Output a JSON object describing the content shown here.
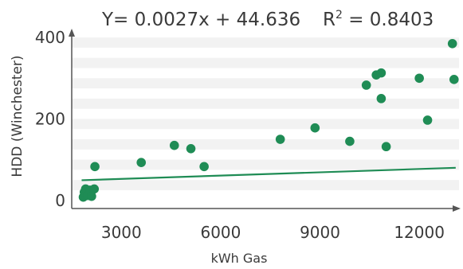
{
  "chart_data": {
    "type": "scatter",
    "title": "",
    "equation": "Y= 0.0027x + 44.636",
    "r2_prefix": "R",
    "r2_exp": "2",
    "r2_value": " = 0.8403",
    "xlabel": "kWh Gas",
    "ylabel": "HDD (Winchester)",
    "xlim": [
      1500,
      13200
    ],
    "ylim": [
      -20,
      410
    ],
    "xticks": [
      3000,
      6000,
      9000,
      12000
    ],
    "xtick_labels": [
      "3000",
      "6000",
      "9000",
      "12000"
    ],
    "yticks": [
      0,
      200,
      400
    ],
    "ytick_labels": [
      "0",
      "200",
      "400"
    ],
    "grid": "horizontal bands",
    "legend": "none",
    "point_color": "#1f8c55",
    "band_color": "#f2f2f2",
    "axis_color": "#555555",
    "trendline": {
      "slope": 0.0027,
      "intercept": 44.636,
      "x_range": [
        1800,
        13100
      ]
    },
    "points": [
      {
        "x": 1850,
        "y": 8
      },
      {
        "x": 1880,
        "y": 20
      },
      {
        "x": 1920,
        "y": 28
      },
      {
        "x": 1980,
        "y": 12
      },
      {
        "x": 2050,
        "y": 25
      },
      {
        "x": 2100,
        "y": 10
      },
      {
        "x": 2180,
        "y": 28
      },
      {
        "x": 2200,
        "y": 83
      },
      {
        "x": 3600,
        "y": 93
      },
      {
        "x": 4600,
        "y": 135
      },
      {
        "x": 5100,
        "y": 127
      },
      {
        "x": 5500,
        "y": 83
      },
      {
        "x": 7800,
        "y": 150
      },
      {
        "x": 8850,
        "y": 178
      },
      {
        "x": 9900,
        "y": 145
      },
      {
        "x": 10400,
        "y": 283
      },
      {
        "x": 10700,
        "y": 308
      },
      {
        "x": 10850,
        "y": 313
      },
      {
        "x": 10850,
        "y": 250
      },
      {
        "x": 11000,
        "y": 132
      },
      {
        "x": 12000,
        "y": 300
      },
      {
        "x": 12250,
        "y": 197
      },
      {
        "x": 13000,
        "y": 385
      },
      {
        "x": 13050,
        "y": 297
      }
    ]
  }
}
